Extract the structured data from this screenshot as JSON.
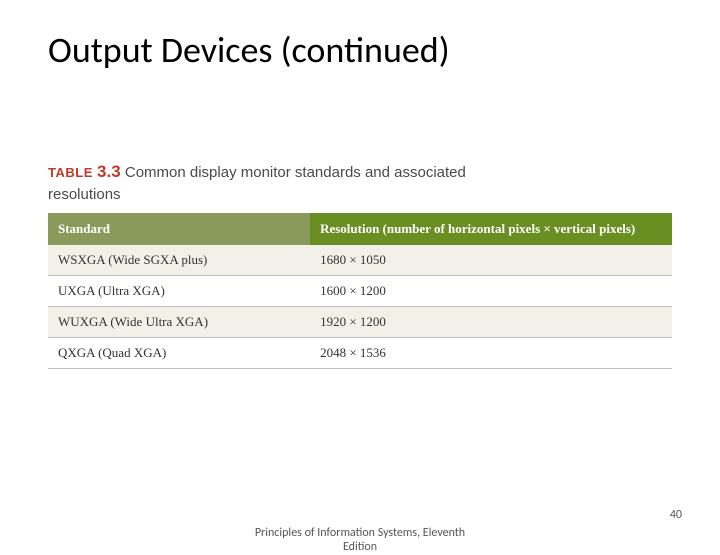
{
  "title": "Output Devices (continued)",
  "table_caption": {
    "label": "TABLE",
    "number": "3.3",
    "text_line1": "Common display monitor standards and associated",
    "text_line2": "resolutions"
  },
  "table": {
    "headers": {
      "left": "Standard",
      "right": "Resolution (number of horizontal pixels × vertical pixels)"
    },
    "header_colors": {
      "left": "#8a9a5b",
      "right": "#6b8e23"
    },
    "row_bg": {
      "odd": "#f3f0e7",
      "even": "#ffffff"
    },
    "border_color": "#bfbfbf",
    "rows": [
      {
        "standard": "WSXGA (Wide SGXA plus)",
        "resolution": "1680 × 1050"
      },
      {
        "standard": "UXGA (Ultra XGA)",
        "resolution": "1600 × 1200"
      },
      {
        "standard": "WUXGA (Wide Ultra XGA)",
        "resolution": "1920 × 1200"
      },
      {
        "standard": "QXGA (Quad XGA)",
        "resolution": "2048 × 1536"
      }
    ]
  },
  "footer": {
    "source_line1": "Principles of Information Systems, Eleventh",
    "source_line2": "Edition",
    "page_number": "40"
  },
  "colors": {
    "title": "#000000",
    "caption_text": "#4a4a4a",
    "caption_accent": "#c0392b",
    "footer_text": "#555555",
    "background": "#ffffff"
  },
  "fontsizes_pt": {
    "title": 27,
    "caption": 11,
    "table_body": 10,
    "footer": 9
  }
}
